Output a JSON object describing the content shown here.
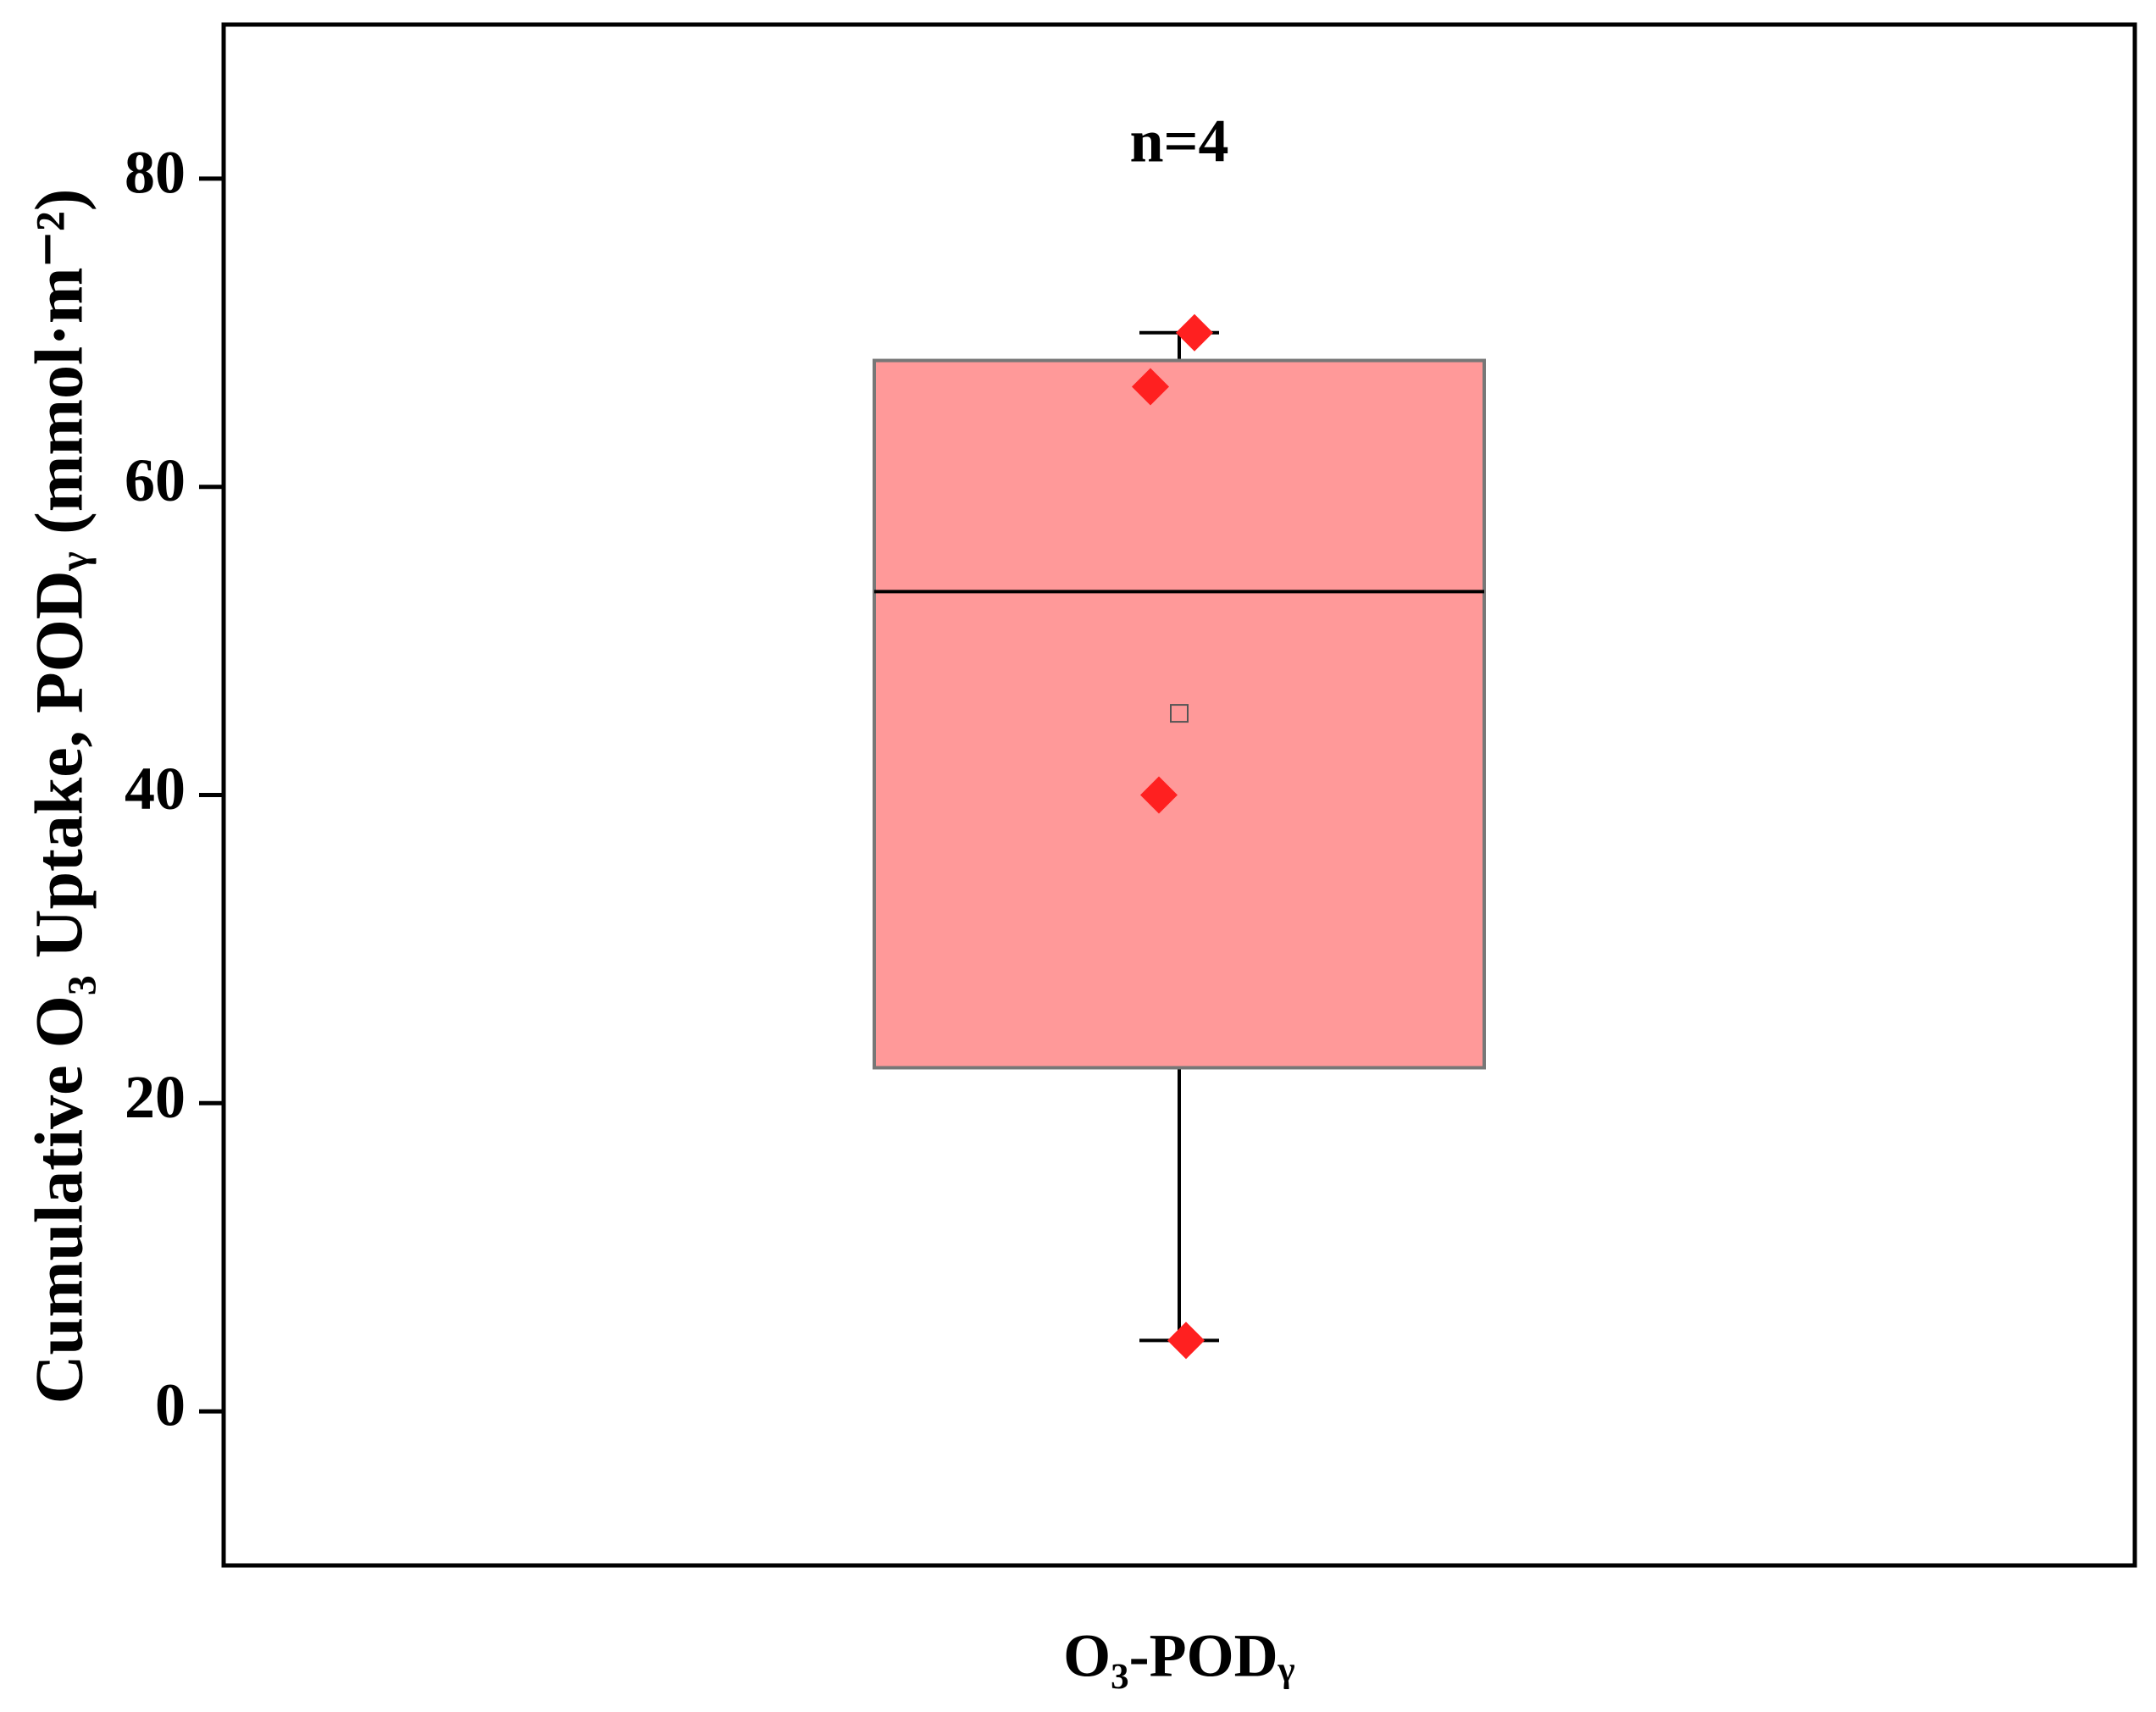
{
  "chart_data": {
    "type": "box",
    "title": "n=4",
    "y_label": "Cumulative O₃ Uptake, PODᵧ (mmol·m⁻²)",
    "categories": [
      "O₃-PODᵧ"
    ],
    "box": {
      "min": 4.6,
      "q1": 22.3,
      "median": 53.2,
      "q3": 68.2,
      "max": 70,
      "mean": 45.3
    },
    "points": [
      70,
      66.5,
      40,
      4.6
    ],
    "color": "#ff9999",
    "point_color": "#ff2020",
    "ylim": [
      -10,
      90
    ],
    "yticks": [
      0,
      20,
      40,
      60,
      80
    ]
  }
}
